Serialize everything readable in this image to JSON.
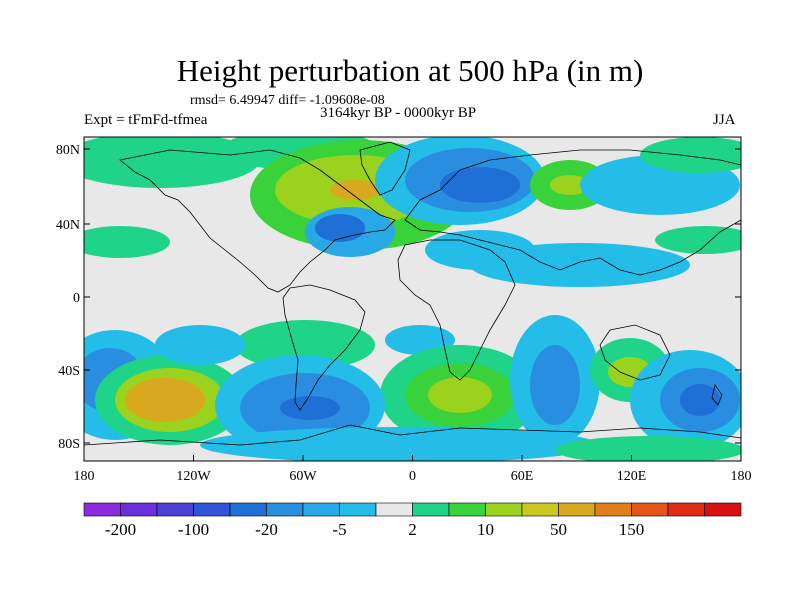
{
  "title": "Height perturbation at 500 hPa (in m)",
  "stats": "rmsd= 6.49947 diff= -1.09608e-08",
  "period": "3164kyr BP - 0000kyr BP",
  "experiment": "Expt = tFmFd-tfmea",
  "season": "JJA",
  "lat_labels": [
    "80N",
    "40N",
    "0",
    "40S",
    "80S"
  ],
  "lon_labels": [
    "180",
    "120W",
    "60W",
    "0",
    "60E",
    "120E",
    "180"
  ],
  "colorbar": {
    "labels": [
      "-200",
      "-100",
      "-20",
      "-5",
      "2",
      "10",
      "50",
      "150"
    ],
    "colors": [
      "#8a2be2",
      "#6a2fd8",
      "#4b3fd6",
      "#2f55d8",
      "#1f70d6",
      "#2a8ee0",
      "#28a8e6",
      "#23bde8",
      "#e8e8e8",
      "#1fd488",
      "#3ad23a",
      "#9ad21e",
      "#c8c81e",
      "#d8a81e",
      "#e0801a",
      "#e45418",
      "#e02c14",
      "#d81010"
    ]
  },
  "colors": {
    "background": "#e8e8e8",
    "neg_weak": "#23bde8",
    "neg_mid": "#28a8e6",
    "neg_strong": "#1f70d6",
    "neg_deep": "#2f55d8",
    "pos_weak": "#1fd488",
    "pos_mid": "#3ad23a",
    "pos_strong": "#9ad21e",
    "pos_high": "#c8c81e",
    "pos_peak": "#d8a81e"
  }
}
